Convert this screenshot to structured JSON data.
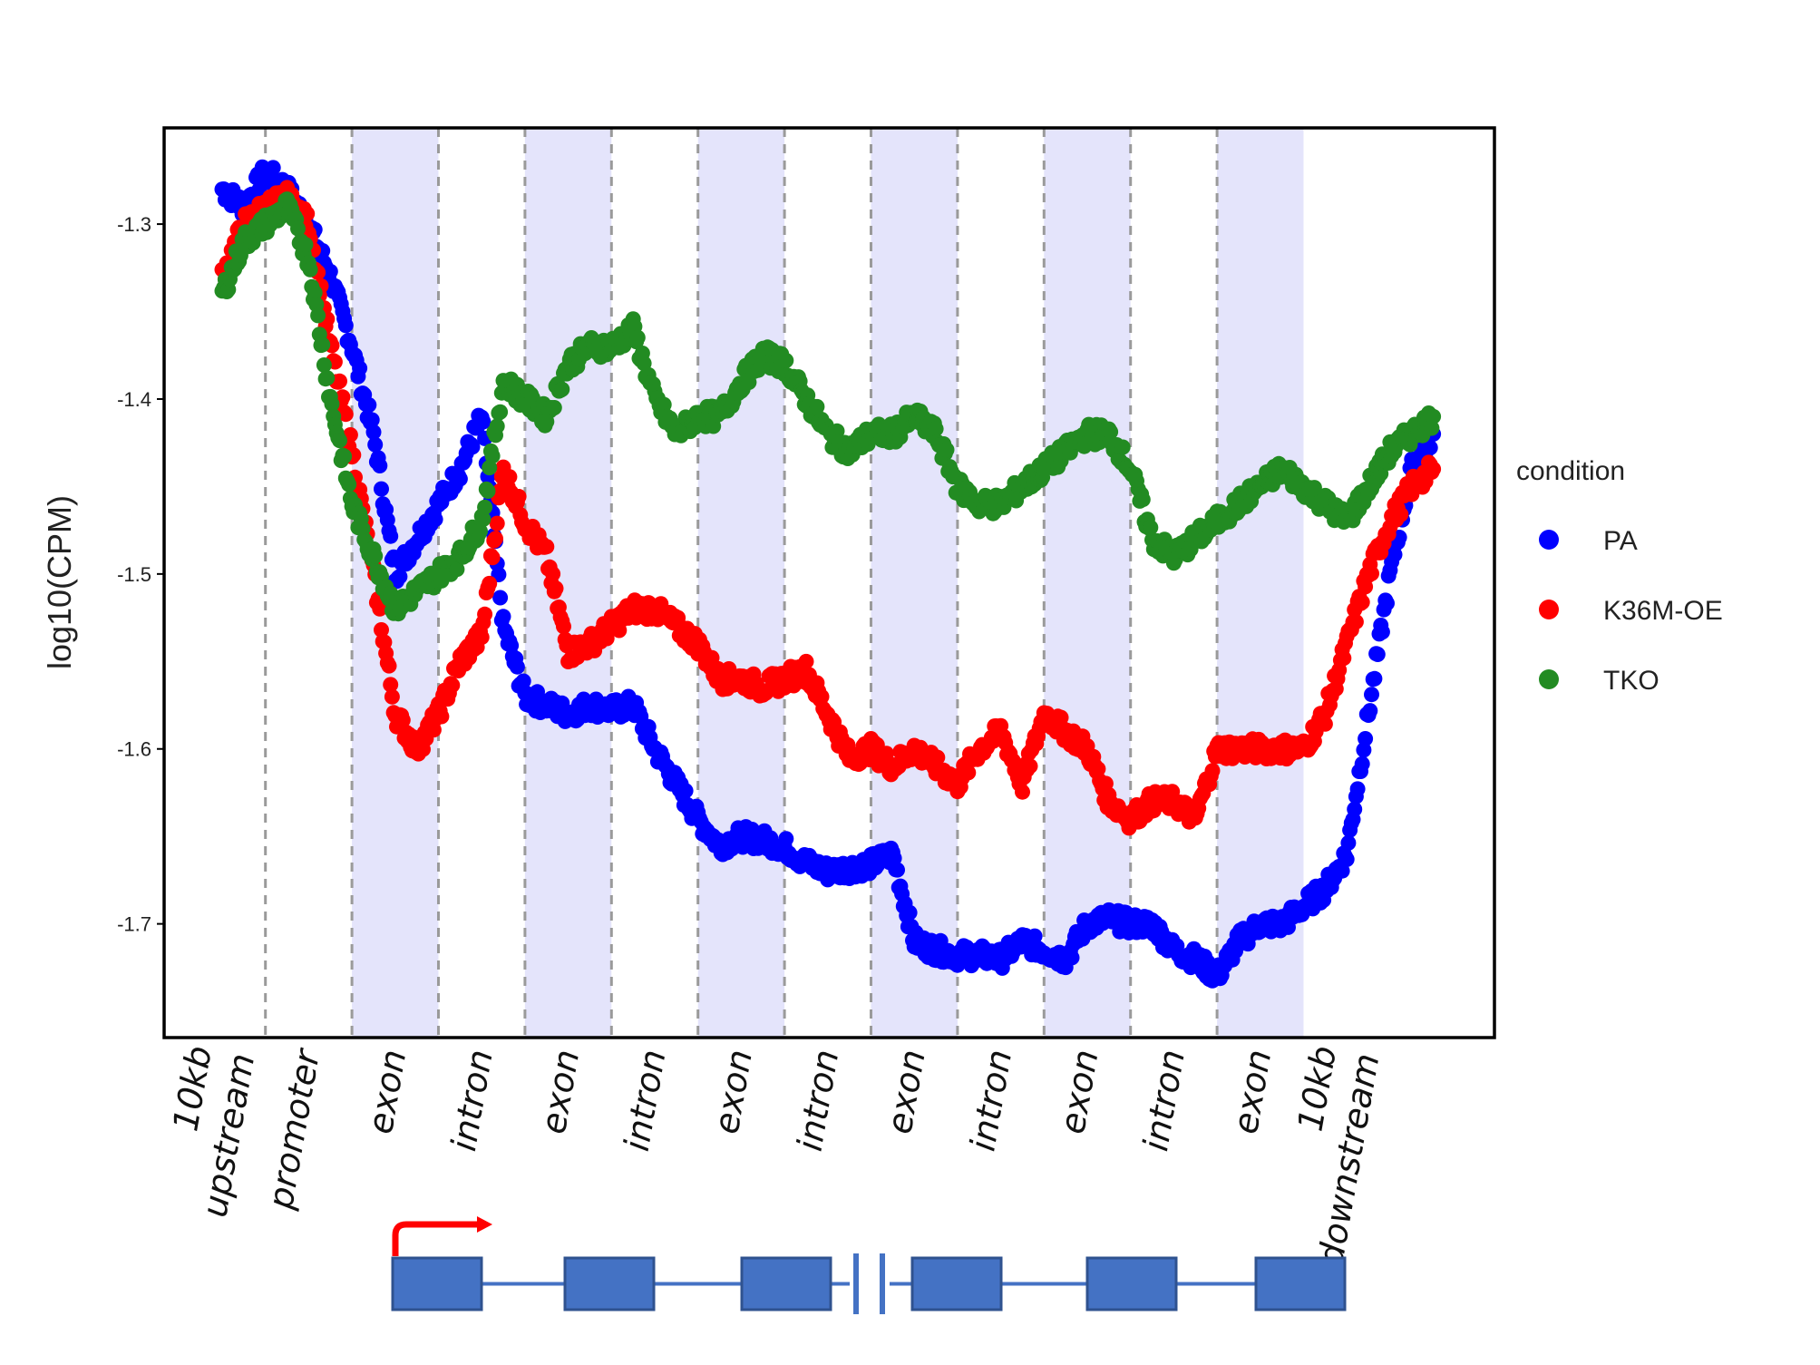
{
  "chart_data": {
    "type": "scatter",
    "title": "",
    "xlabel": "",
    "ylabel": "log10(CPM)",
    "ylim": [
      -1.765,
      -1.245
    ],
    "yticks": [
      -1.3,
      -1.4,
      -1.5,
      -1.6,
      -1.7
    ],
    "ytick_labels": [
      "-1.3",
      "-1.4",
      "-1.5",
      "-1.6",
      "-1.7"
    ],
    "grid": false,
    "legend": {
      "title": "condition",
      "placement": "right"
    },
    "regions": [
      {
        "label": "10kb\nupstream",
        "shaded": false
      },
      {
        "label": "promoter",
        "shaded": false
      },
      {
        "label": "exon",
        "shaded": true
      },
      {
        "label": "intron",
        "shaded": false
      },
      {
        "label": "exon",
        "shaded": true
      },
      {
        "label": "intron",
        "shaded": false
      },
      {
        "label": "exon",
        "shaded": true
      },
      {
        "label": "intron",
        "shaded": false
      },
      {
        "label": "exon",
        "shaded": true
      },
      {
        "label": "intron",
        "shaded": false
      },
      {
        "label": "exon",
        "shaded": true
      },
      {
        "label": "intron",
        "shaded": false
      },
      {
        "label": "exon",
        "shaded": true
      },
      {
        "label": "10kb\ndownstream",
        "shaded": false
      }
    ],
    "x": [
      0.0,
      0.25,
      0.5,
      0.75,
      1.0,
      1.25,
      1.5,
      1.75,
      2.0,
      2.25,
      2.5,
      2.75,
      3.0,
      3.25,
      3.5,
      3.75,
      4.0,
      4.25,
      4.5,
      4.75,
      5.0,
      5.25,
      5.5,
      5.75,
      6.0,
      6.25,
      6.5,
      6.75,
      7.0,
      7.25,
      7.5,
      7.75,
      8.0,
      8.25,
      8.5,
      8.75,
      9.0,
      9.25,
      9.5,
      9.75,
      10.0,
      10.25,
      10.5,
      10.75,
      11.0,
      11.25,
      11.5,
      11.75,
      12.0,
      12.25,
      12.5,
      12.75,
      13.0,
      13.25,
      13.5,
      13.75,
      14.0
    ],
    "series": [
      {
        "name": "PA",
        "color": "#0000ff",
        "values": [
          -1.28,
          -1.29,
          -1.27,
          -1.28,
          -1.3,
          -1.33,
          -1.37,
          -1.42,
          -1.5,
          -1.48,
          -1.46,
          -1.44,
          -1.41,
          -1.53,
          -1.57,
          -1.575,
          -1.58,
          -1.575,
          -1.578,
          -1.575,
          -1.6,
          -1.62,
          -1.64,
          -1.655,
          -1.65,
          -1.652,
          -1.656,
          -1.665,
          -1.67,
          -1.668,
          -1.666,
          -1.66,
          -1.71,
          -1.715,
          -1.718,
          -1.718,
          -1.72,
          -1.71,
          -1.715,
          -1.72,
          -1.7,
          -1.697,
          -1.7,
          -1.7,
          -1.715,
          -1.72,
          -1.73,
          -1.71,
          -1.7,
          -1.7,
          -1.69,
          -1.68,
          -1.66,
          -1.58,
          -1.5,
          -1.44,
          -1.42
        ]
      },
      {
        "name": "K36M-OE",
        "color": "#ff0000",
        "values": [
          -1.33,
          -1.3,
          -1.29,
          -1.285,
          -1.3,
          -1.37,
          -1.43,
          -1.5,
          -1.58,
          -1.6,
          -1.58,
          -1.55,
          -1.535,
          -1.44,
          -1.47,
          -1.49,
          -1.545,
          -1.54,
          -1.53,
          -1.52,
          -1.52,
          -1.53,
          -1.54,
          -1.56,
          -1.56,
          -1.565,
          -1.56,
          -1.555,
          -1.58,
          -1.605,
          -1.6,
          -1.61,
          -1.6,
          -1.61,
          -1.62,
          -1.6,
          -1.59,
          -1.62,
          -1.58,
          -1.59,
          -1.6,
          -1.63,
          -1.64,
          -1.63,
          -1.63,
          -1.64,
          -1.6,
          -1.6,
          -1.6,
          -1.6,
          -1.6,
          -1.58,
          -1.54,
          -1.5,
          -1.47,
          -1.45,
          -1.44
        ]
      },
      {
        "name": "TKO",
        "color": "#228b22",
        "values": [
          -1.34,
          -1.31,
          -1.3,
          -1.29,
          -1.32,
          -1.4,
          -1.46,
          -1.49,
          -1.52,
          -1.51,
          -1.5,
          -1.49,
          -1.47,
          -1.39,
          -1.4,
          -1.41,
          -1.38,
          -1.37,
          -1.37,
          -1.36,
          -1.4,
          -1.42,
          -1.41,
          -1.41,
          -1.39,
          -1.375,
          -1.38,
          -1.4,
          -1.42,
          -1.43,
          -1.42,
          -1.42,
          -1.41,
          -1.42,
          -1.45,
          -1.46,
          -1.46,
          -1.45,
          -1.44,
          -1.43,
          -1.42,
          -1.42,
          -1.44,
          -1.48,
          -1.49,
          -1.48,
          -1.47,
          -1.46,
          -1.45,
          -1.44,
          -1.45,
          -1.46,
          -1.47,
          -1.45,
          -1.43,
          -1.42,
          -1.41
        ]
      }
    ],
    "gene_diagram": {
      "exons": 6,
      "has_break": true,
      "arrow_color": "#ff0000",
      "exon_color": "#4472c4"
    }
  }
}
